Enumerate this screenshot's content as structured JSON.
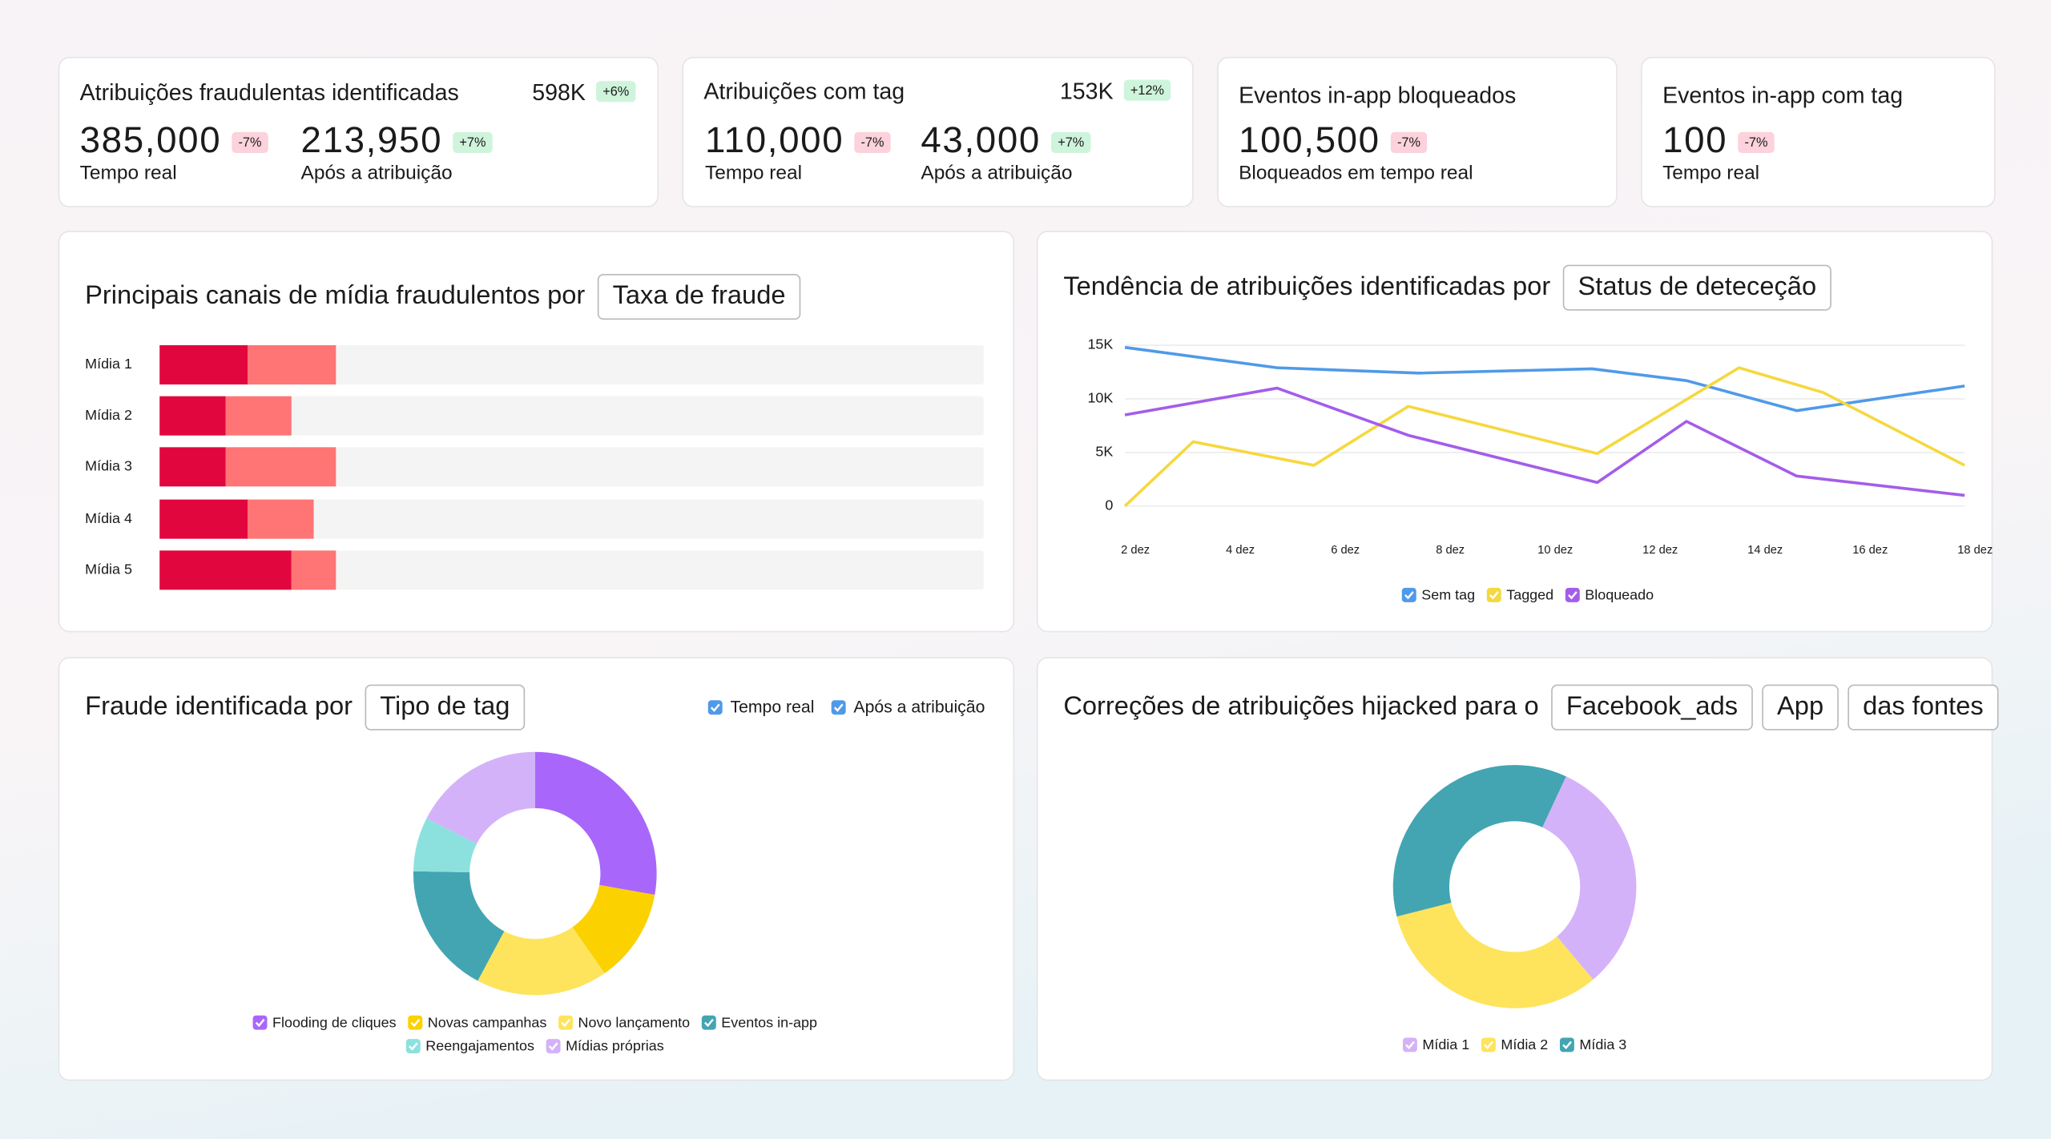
{
  "kpi_cards": [
    {
      "title": "Atribuições fraudulentas identificadas",
      "total": "598K",
      "total_change": "+6%",
      "metrics": [
        {
          "value": "385,000",
          "change": "-7%",
          "label": "Tempo real"
        },
        {
          "value": "213,950",
          "change": "+7%",
          "label": "Após a atribuição"
        }
      ]
    },
    {
      "title": "Atribuições com tag",
      "total": "153K",
      "total_change": "+12%",
      "metrics": [
        {
          "value": "110,000",
          "change": "-7%",
          "label": "Tempo real"
        },
        {
          "value": "43,000",
          "change": "+7%",
          "label": "Após a atribuição"
        }
      ]
    },
    {
      "title": "Eventos in-app bloqueados",
      "metrics": [
        {
          "value": "100,500",
          "change": "-7%",
          "label": "Bloqueados em tempo real"
        }
      ]
    },
    {
      "title": "Eventos in-app com tag",
      "metrics": [
        {
          "value": "100",
          "change": "-7%",
          "label": "Tempo real"
        }
      ]
    }
  ],
  "chart_data": [
    {
      "type": "bar",
      "stacked": true,
      "orientation": "horizontal",
      "title": "Principais canais de mídia fraudulentos por",
      "selectors": [
        "Taxa de fraude"
      ],
      "categories": [
        "Mídia 1",
        "Mídia 2",
        "Mídia 3",
        "Mídia 4",
        "Mídia 5"
      ],
      "xlim": [
        0,
        100
      ],
      "series": [
        {
          "color": "#e2063f",
          "values": [
            10.7,
            8,
            8,
            10.7,
            16
          ]
        },
        {
          "color": "#ff7474",
          "values": [
            10.7,
            8,
            13.4,
            8,
            5.4
          ]
        }
      ]
    },
    {
      "type": "line",
      "title": "Tendência de atribuições identificadas por",
      "selectors": [
        "Status de deteceção"
      ],
      "xlim": [
        2,
        18
      ],
      "xticks": [
        {
          "value": 2,
          "label": "2 dez"
        },
        {
          "value": 4,
          "label": "4 dez"
        },
        {
          "value": 6,
          "label": "6 dez"
        },
        {
          "value": 8,
          "label": "8 dez"
        },
        {
          "value": 10,
          "label": "10 dez"
        },
        {
          "value": 12,
          "label": "12 dez"
        },
        {
          "value": 14,
          "label": "14 dez"
        },
        {
          "value": 16,
          "label": "16 dez"
        },
        {
          "value": 18,
          "label": "18 dez"
        }
      ],
      "ylim": [
        0,
        15000
      ],
      "yticks": [
        0,
        {
          "value": 5000,
          "label": "5K"
        },
        {
          "value": 10000,
          "label": "10K"
        },
        {
          "value": 15000,
          "label": "15K"
        }
      ],
      "grid": true,
      "series": [
        {
          "name": "Sem tag",
          "color": "#4f9ae8",
          "x": [
            2,
            4.9,
            7.6,
            10.9,
            12.7,
            14.8,
            18
          ],
          "values": [
            14800,
            12900,
            12400,
            12800,
            11700,
            8900,
            11200
          ]
        },
        {
          "name": "Tagged",
          "color": "#f5d83e",
          "x": [
            2,
            3.3,
            5.6,
            7.4,
            11,
            13.7,
            15.3,
            18
          ],
          "values": [
            0,
            6000,
            3800,
            9300,
            4900,
            12900,
            10600,
            3800
          ]
        },
        {
          "name": "Bloqueado",
          "color": "#a45de9",
          "x": [
            2,
            4.9,
            7.4,
            11,
            12.7,
            14.8,
            18
          ],
          "values": [
            8500,
            11000,
            6600,
            2200,
            7900,
            2800,
            1000
          ]
        }
      ]
    },
    {
      "type": "donut",
      "title": "Fraude identificada por",
      "selectors": [
        "Tipo de tag"
      ],
      "toggles": [
        "Tempo real",
        "Após a atribuição"
      ],
      "categories": [
        "Flooding de cliques",
        "Novas campanhas",
        "Novo lançamento",
        "Eventos in-app",
        "Reengajamentos",
        "Mídias próprias"
      ],
      "colors": [
        "#a966fb",
        "#fbd100",
        "#fde45c",
        "#43a5b2",
        "#8ce1de",
        "#d4b2fa"
      ],
      "values": [
        27.8,
        12.5,
        17.5,
        17.5,
        7.2,
        17.5
      ]
    },
    {
      "type": "donut",
      "title": "Correções de atribuições hijacked para o",
      "selectors": [
        "Facebook_ads",
        "App",
        "das fontes"
      ],
      "categories": [
        "Mídia 1",
        "Mídia 2",
        "Mídia 3"
      ],
      "colors": [
        "#d4b2fa",
        "#fde45c",
        "#43a5b2"
      ],
      "values": [
        31.9,
        32.2,
        35.9
      ]
    }
  ]
}
